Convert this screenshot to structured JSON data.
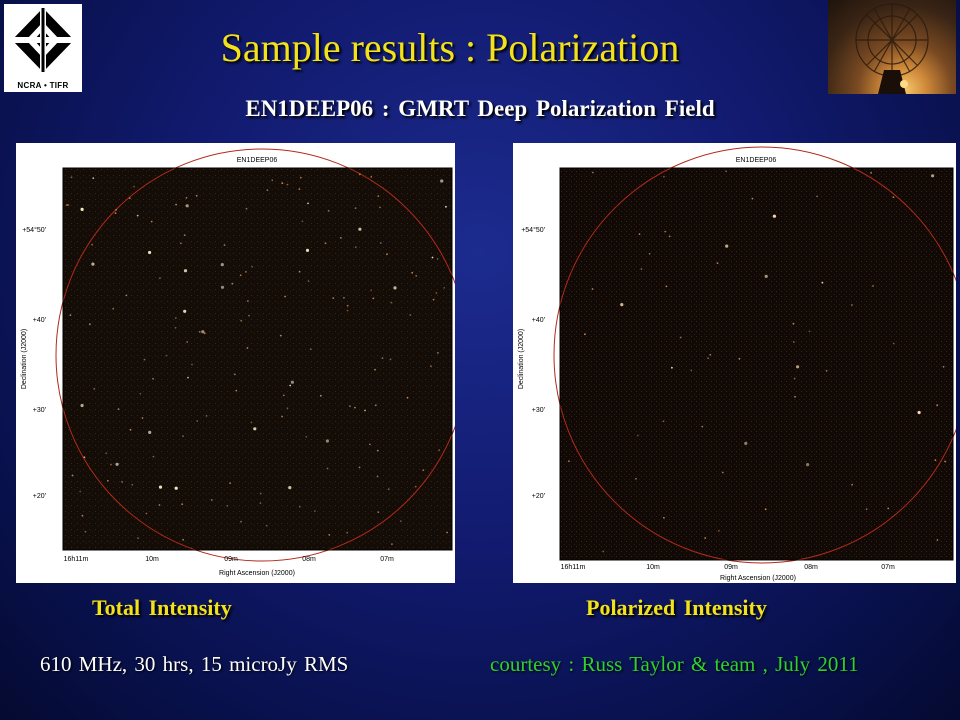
{
  "header": {
    "title": "Sample results  :  Polarization",
    "subtitle": "EN1DEEP06  :  GMRT  Deep  Polarization  Field",
    "logo_text": "NCRA • TIFR"
  },
  "panels": [
    {
      "map_title": "EN1DEEP06",
      "caption": "Total  Intensity",
      "xlabel": "Right Ascension (J2000)",
      "ylabel": "Declination (J2000)",
      "x_ticks": [
        "16h11m",
        "10m",
        "09m",
        "08m",
        "07m"
      ],
      "y_ticks": [
        "+54°50'",
        "+40'",
        "+30'",
        "+20'"
      ]
    },
    {
      "map_title": "EN1DEEP06",
      "caption": "Polarized  Intensity",
      "xlabel": "Right Ascension (J2000)",
      "ylabel": "Declination (J2000)",
      "x_ticks": [
        "16h11m",
        "10m",
        "09m",
        "08m",
        "07m"
      ],
      "y_ticks": [
        "+54°50'",
        "+40'",
        "+30'",
        "+20'"
      ]
    }
  ],
  "footer": {
    "observation": "610 MHz,  30  hrs,  15 microJy RMS",
    "credit": "courtesy :  Russ Taylor & team ,  July 2011"
  },
  "colors": {
    "title": "#f3e21a",
    "credit": "#2ed12e",
    "circle": "#b22a1a"
  }
}
